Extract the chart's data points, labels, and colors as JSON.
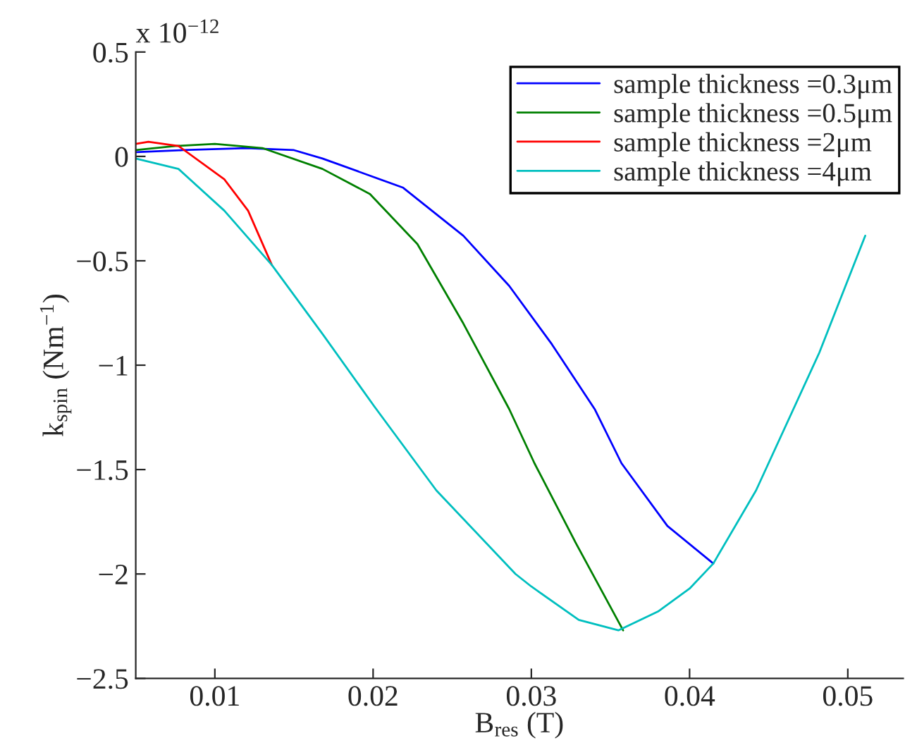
{
  "chart_data": {
    "type": "line",
    "xlabel": "B$_{res}$ (T)",
    "ylabel": "k$_{spin}$ (Nm$^{−1}$)",
    "annotations": [
      "x 10$^{−12}$"
    ],
    "series": [
      {
        "name": "sample thickness =0.3μm",
        "color": "#0000ff",
        "x": [
          0.005,
          0.008,
          0.012,
          0.015,
          0.0168,
          0.0219,
          0.0257,
          0.0286,
          0.0313,
          0.034,
          0.0357,
          0.0386,
          0.0415
        ],
        "values": [
          0.02,
          0.03,
          0.04,
          0.03,
          -0.01,
          -0.15,
          -0.38,
          -0.62,
          -0.9,
          -1.21,
          -1.47,
          -1.77,
          -1.95
        ]
      },
      {
        "name": "sample thickness =0.5μm",
        "color": "#008000",
        "x": [
          0.005,
          0.0075,
          0.01,
          0.013,
          0.0168,
          0.0198,
          0.0228,
          0.0257,
          0.0286,
          0.0302,
          0.0328,
          0.0358
        ],
        "values": [
          0.03,
          0.05,
          0.06,
          0.04,
          -0.06,
          -0.18,
          -0.42,
          -0.8,
          -1.21,
          -1.47,
          -1.85,
          -2.27
        ]
      },
      {
        "name": "sample thickness =2μm",
        "color": "#ff0000",
        "x": [
          0.005,
          0.0058,
          0.0077,
          0.0106,
          0.0121,
          0.0136
        ],
        "values": [
          0.06,
          0.07,
          0.05,
          -0.11,
          -0.26,
          -0.52
        ]
      },
      {
        "name": "sample thickness =4μm",
        "color": "#00bfbf",
        "x": [
          0.005,
          0.0077,
          0.0106,
          0.0136,
          0.0168,
          0.0201,
          0.024,
          0.029,
          0.03,
          0.033,
          0.0355,
          0.038,
          0.04,
          0.0415,
          0.0442,
          0.0482,
          0.0511
        ],
        "values": [
          -0.01,
          -0.06,
          -0.26,
          -0.52,
          -0.85,
          -1.2,
          -1.6,
          -2.0,
          -2.06,
          -2.22,
          -2.27,
          -2.18,
          -2.07,
          -1.95,
          -1.6,
          -0.94,
          -0.38
        ]
      }
    ],
    "xlim": [
      0.005,
      0.0535
    ],
    "xticks": [
      0.01,
      0.02,
      0.03,
      0.04,
      0.05
    ],
    "ylim": [
      -2.5,
      0.5
    ],
    "yticks": [
      -2.5,
      -2,
      -1.5,
      -1,
      -0.5,
      0,
      0.5
    ],
    "legend": "top right",
    "grid": false
  }
}
